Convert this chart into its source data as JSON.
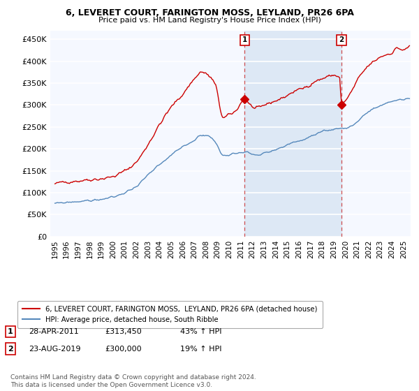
{
  "title1": "6, LEVERET COURT, FARINGTON MOSS, LEYLAND, PR26 6PA",
  "title2": "Price paid vs. HM Land Registry's House Price Index (HPI)",
  "ylabel_ticks": [
    "£0",
    "£50K",
    "£100K",
    "£150K",
    "£200K",
    "£250K",
    "£300K",
    "£350K",
    "£400K",
    "£450K"
  ],
  "ytick_values": [
    0,
    50000,
    100000,
    150000,
    200000,
    250000,
    300000,
    350000,
    400000,
    450000
  ],
  "ylim": [
    0,
    470000
  ],
  "xlim_start": 1994.6,
  "xlim_end": 2025.6,
  "sale1_x": 2011.32,
  "sale1_y": 313450,
  "sale1_label": "1",
  "sale1_date": "28-APR-2011",
  "sale1_price": "£313,450",
  "sale1_hpi": "43% ↑ HPI",
  "sale2_x": 2019.65,
  "sale2_y": 300000,
  "sale2_label": "2",
  "sale2_date": "23-AUG-2019",
  "sale2_price": "£300,000",
  "sale2_hpi": "19% ↑ HPI",
  "red_color": "#cc0000",
  "blue_color": "#5588bb",
  "shade_color": "#dde8f5",
  "bg_color": "#f5f8ff",
  "legend_line1": "6, LEVERET COURT, FARINGTON MOSS,  LEYLAND, PR26 6PA (detached house)",
  "legend_line2": "HPI: Average price, detached house, South Ribble",
  "footer": "Contains HM Land Registry data © Crown copyright and database right 2024.\nThis data is licensed under the Open Government Licence v3.0.",
  "xtick_years": [
    1995,
    1996,
    1997,
    1998,
    1999,
    2000,
    2001,
    2002,
    2003,
    2004,
    2005,
    2006,
    2007,
    2008,
    2009,
    2010,
    2011,
    2012,
    2013,
    2014,
    2015,
    2016,
    2017,
    2018,
    2019,
    2020,
    2021,
    2022,
    2023,
    2024,
    2025
  ]
}
